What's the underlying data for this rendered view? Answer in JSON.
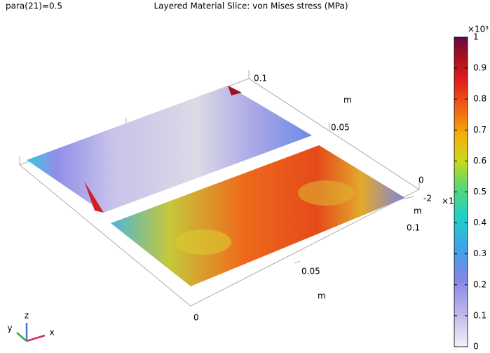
{
  "header": {
    "parameter": "para(21)=0.5",
    "title": "Layered Material Slice: von Mises stress (MPa)"
  },
  "colorbar": {
    "exponent": "×10³",
    "lim": [
      0,
      1
    ],
    "ticks": [
      0,
      0.1,
      0.2,
      0.3,
      0.4,
      0.5,
      0.6,
      0.7,
      0.8,
      0.9,
      1
    ]
  },
  "axes": {
    "y_axis": {
      "ticks": [
        0.1,
        0.05,
        0
      ],
      "unit": "m"
    },
    "z_axis": {
      "ticks": [
        -2
      ],
      "multiplier": "×1",
      "unit": "m"
    },
    "x_axis": {
      "ticks": [
        0.1,
        0.05,
        0
      ],
      "unit": "m"
    }
  },
  "triad": {
    "x": "x",
    "y": "y",
    "z": "z"
  }
}
